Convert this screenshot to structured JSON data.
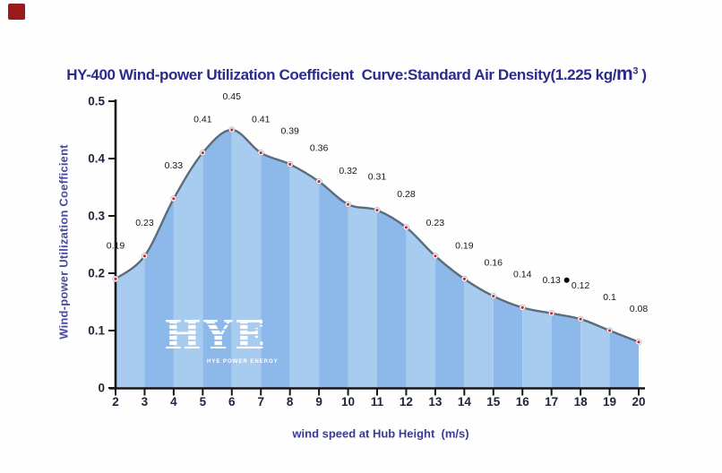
{
  "page": {
    "background": "#fefefe",
    "corner_marker_color": "#991b1b"
  },
  "title": {
    "prefix": "HY-400 Wind-power Utilization Coefficient  Curve:Standard Air Density(1.225 kg/",
    "unit_base": "m",
    "unit_sup": "3",
    "suffix": " )",
    "color": "#2b2b8c"
  },
  "chart_data": {
    "type": "area",
    "x": [
      2,
      3,
      4,
      5,
      6,
      7,
      8,
      9,
      10,
      11,
      12,
      13,
      14,
      15,
      16,
      17,
      18,
      19,
      20
    ],
    "values": [
      0.19,
      0.23,
      0.33,
      0.41,
      0.45,
      0.41,
      0.39,
      0.36,
      0.32,
      0.31,
      0.28,
      0.23,
      0.19,
      0.16,
      0.14,
      0.13,
      0.12,
      0.1,
      0.08
    ],
    "xlabel": "wind speed at Hub Height  (m/s)",
    "ylabel": "Wind-power Utilization Coefficient",
    "xlim": [
      2,
      20
    ],
    "ylim": [
      0,
      0.5
    ],
    "y_tick_labels": [
      "0",
      "0.1",
      "0.2",
      "0.3",
      "0.4",
      "0.5"
    ],
    "y_tick_values": [
      0,
      0.1,
      0.2,
      0.3,
      0.4,
      0.5
    ],
    "grid": false,
    "legend": null,
    "colors": {
      "band_light": "#a7ccf0",
      "band_dark": "#8cb9e9",
      "curve_line": "#5a6c7d",
      "marker_ring": "#ffffff",
      "marker_ring_edge": "#93a2b0",
      "marker_center": "#c22f36",
      "axis": "#161616",
      "tick_label": "#23233c",
      "data_label": "#161616",
      "x_title": "#3b3b92",
      "y_title": "#4a4a9e"
    },
    "stray_dot": {
      "near_x": 17,
      "color": "#000000"
    },
    "watermark": {
      "text": "HYE",
      "subtext": "HYE POWER ENERGY"
    }
  }
}
